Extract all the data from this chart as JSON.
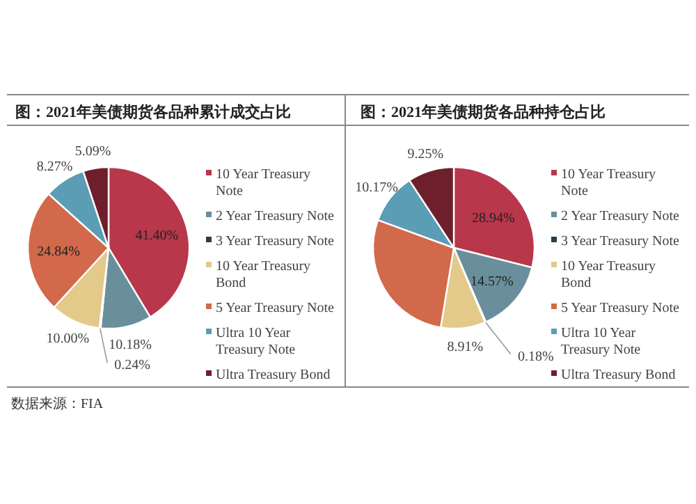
{
  "chart_data": [
    {
      "type": "pie",
      "title": "图：2021年美债期货各品种累计成交占比",
      "categories": [
        "10 Year Treasury Note",
        "2 Year Treasury Note",
        "3 Year Treasury Note",
        "10 Year Treasury Bond",
        "5 Year Treasury Note",
        "Ultra 10 Year Treasury Note",
        "Ultra Treasury Bond"
      ],
      "values": [
        41.4,
        10.18,
        0.24,
        10.0,
        24.84,
        8.27,
        5.09
      ],
      "colors": [
        "#b8374b",
        "#6a8f9c",
        "#24404f",
        "#e3c98a",
        "#d2694a",
        "#5b9db5",
        "#6e1f2c"
      ],
      "value_labels": [
        "41.40%",
        "10.18%",
        "0.24%",
        "10.00%",
        "24.84%",
        "8.27%",
        "5.09%"
      ],
      "legend": "right",
      "annotations": [
        "数据来源：FIA"
      ]
    },
    {
      "type": "pie",
      "title": "图：2021年美债期货各品种持仓占比",
      "categories": [
        "10 Year Treasury Note",
        "2 Year Treasury Note",
        "3 Year Treasury Note",
        "10 Year Treasury Bond",
        "5 Year Treasury Note",
        "Ultra 10 Year Treasury Note",
        "Ultra Treasury Bond"
      ],
      "values": [
        28.94,
        14.57,
        0.18,
        8.91,
        27.98,
        10.17,
        9.25
      ],
      "colors": [
        "#b8374b",
        "#6a8f9c",
        "#24404f",
        "#e3c98a",
        "#d2694a",
        "#5b9db5",
        "#6e1f2c"
      ],
      "value_labels": [
        "28.94%",
        "14.57%",
        "0.18%",
        "8.91%",
        null,
        "10.17%",
        "9.25%"
      ],
      "legend": "right"
    }
  ]
}
